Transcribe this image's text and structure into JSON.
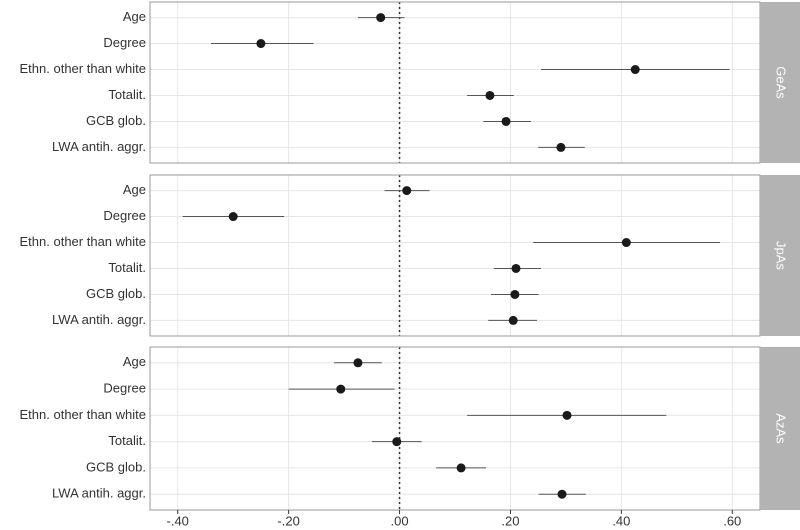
{
  "chart_data": {
    "type": "forest",
    "categories": [
      "Age",
      "Degree",
      "Ethn. other than white",
      "Totalit.",
      "GCB glob.",
      "LWA antih. aggr."
    ],
    "xlim": [
      -0.45,
      0.65
    ],
    "xticks": [
      {
        "value": -0.4,
        "label": "-.40"
      },
      {
        "value": -0.2,
        "label": "-.20"
      },
      {
        "value": 0,
        "label": ".00"
      },
      {
        "value": 0.2,
        "label": ".20"
      },
      {
        "value": 0.4,
        "label": ".40"
      },
      {
        "value": 0.6,
        "label": ".60"
      }
    ],
    "reference_line": 0,
    "grid": true,
    "color": "#1a1a1a",
    "facets": [
      {
        "name": "GeAs",
        "values": [
          -0.034,
          -0.25,
          0.425,
          0.163,
          0.192,
          0.291
        ],
        "lower": [
          -0.075,
          -0.34,
          0.255,
          0.122,
          0.151,
          0.25
        ],
        "upper": [
          0.009,
          -0.155,
          0.595,
          0.206,
          0.237,
          0.334
        ]
      },
      {
        "name": "JpAs",
        "values": [
          0.013,
          -0.3,
          0.409,
          0.21,
          0.208,
          0.205
        ],
        "lower": [
          -0.027,
          -0.391,
          0.241,
          0.17,
          0.165,
          0.16
        ],
        "upper": [
          0.054,
          -0.208,
          0.578,
          0.255,
          0.251,
          0.248
        ]
      },
      {
        "name": "AzAs",
        "values": [
          -0.075,
          -0.106,
          0.302,
          -0.005,
          0.111,
          0.293
        ],
        "lower": [
          -0.118,
          -0.2,
          0.122,
          -0.05,
          0.066,
          0.251
        ],
        "upper": [
          -0.032,
          -0.009,
          0.481,
          0.04,
          0.156,
          0.336
        ]
      }
    ]
  }
}
